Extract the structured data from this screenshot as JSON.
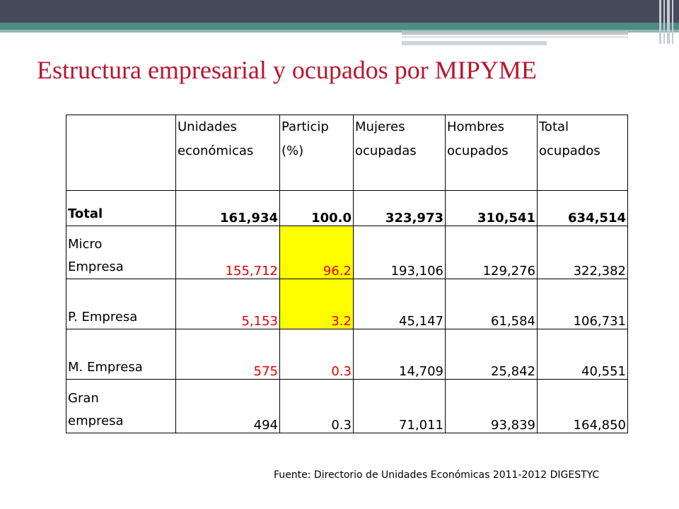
{
  "title": "Estructura empresarial y ocupados por MIPYME",
  "table": {
    "headers": [
      "",
      "Unidades económicas",
      "Particip (%)",
      "Mujeres ocupadas",
      "Hombres ocupados",
      "Total ocupados"
    ],
    "header_lines": [
      [
        ""
      ],
      [
        "Unidades",
        "económicas"
      ],
      [
        "Particip",
        "(%)"
      ],
      [
        "Mujeres",
        "ocupadas"
      ],
      [
        "Hombres",
        "ocupados"
      ],
      [
        "Total",
        "ocupados"
      ]
    ],
    "rows": [
      {
        "label": "Total",
        "label_lines": [
          "Total"
        ],
        "values": [
          "161,934",
          "100.0",
          "323,973",
          "310,541",
          "634,514"
        ]
      },
      {
        "label": "Micro Empresa",
        "label_lines": [
          "Micro",
          "Empresa"
        ],
        "values": [
          "155,712",
          "96.2",
          "193,106",
          "129,276",
          "322,382"
        ]
      },
      {
        "label": "P. Empresa",
        "label_lines": [
          "P. Empresa"
        ],
        "values": [
          "5,153",
          "3.2",
          "45,147",
          "61,584",
          "106,731"
        ]
      },
      {
        "label": "M. Empresa",
        "label_lines": [
          "M. Empresa"
        ],
        "values": [
          "575",
          "0.3",
          "14,709",
          "25,842",
          "40,551"
        ]
      },
      {
        "label": "Gran empresa",
        "label_lines": [
          "Gran",
          "empresa"
        ],
        "values": [
          "494",
          "0.3",
          "71,011",
          "93,839",
          "164,850"
        ]
      }
    ]
  },
  "colors": {
    "title": "#b9152e",
    "highlight_text": "#e00000",
    "highlight_fill": "#ffff00",
    "header_bar": "#474a5a",
    "accent_bar": "#4e8b84"
  },
  "source": "Fuente: Directorio de Unidades Económicas 2011-2012 DIGESTYC"
}
